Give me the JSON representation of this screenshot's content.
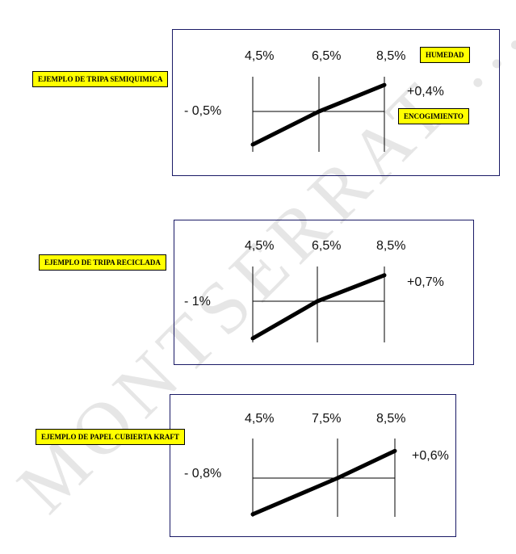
{
  "watermark": {
    "text": "MONTSERRAT ... SOL",
    "color": "#e4e4e4"
  },
  "legend": {
    "humidity": "HUMEDAD",
    "shrinkage": "ENCOGIMIENTO"
  },
  "chart_data": [
    {
      "type": "line",
      "title": "EJEMPLO DE TRIPA SEMIQUIMICA",
      "x": [
        "4,5%",
        "6,5%",
        "8,5%"
      ],
      "start_label": "- 0,5%",
      "end_label": "+0,4%",
      "series": [
        {
          "values": [
            -0.5,
            0,
            0.4
          ]
        }
      ],
      "ylim": [
        -0.5,
        0.4
      ],
      "grid": true
    },
    {
      "type": "line",
      "title": "EJEMPLO DE TRIPA RECICLADA",
      "x": [
        "4,5%",
        "6,5%",
        "8,5%"
      ],
      "start_label": "- 1%",
      "end_label": "+0,7%",
      "series": [
        {
          "values": [
            -1,
            0,
            0.7
          ]
        }
      ],
      "ylim": [
        -1,
        0.7
      ],
      "grid": true
    },
    {
      "type": "line",
      "title": "EJEMPLO DE PAPEL CUBIERTA KRAFT",
      "x": [
        "4,5%",
        "7,5%",
        "8,5%"
      ],
      "start_label": "- 0,8%",
      "end_label": "+0,6%",
      "series": [
        {
          "values": [
            -0.8,
            0,
            0.6
          ]
        }
      ],
      "ylim": [
        -0.8,
        0.6
      ],
      "grid": true
    }
  ]
}
